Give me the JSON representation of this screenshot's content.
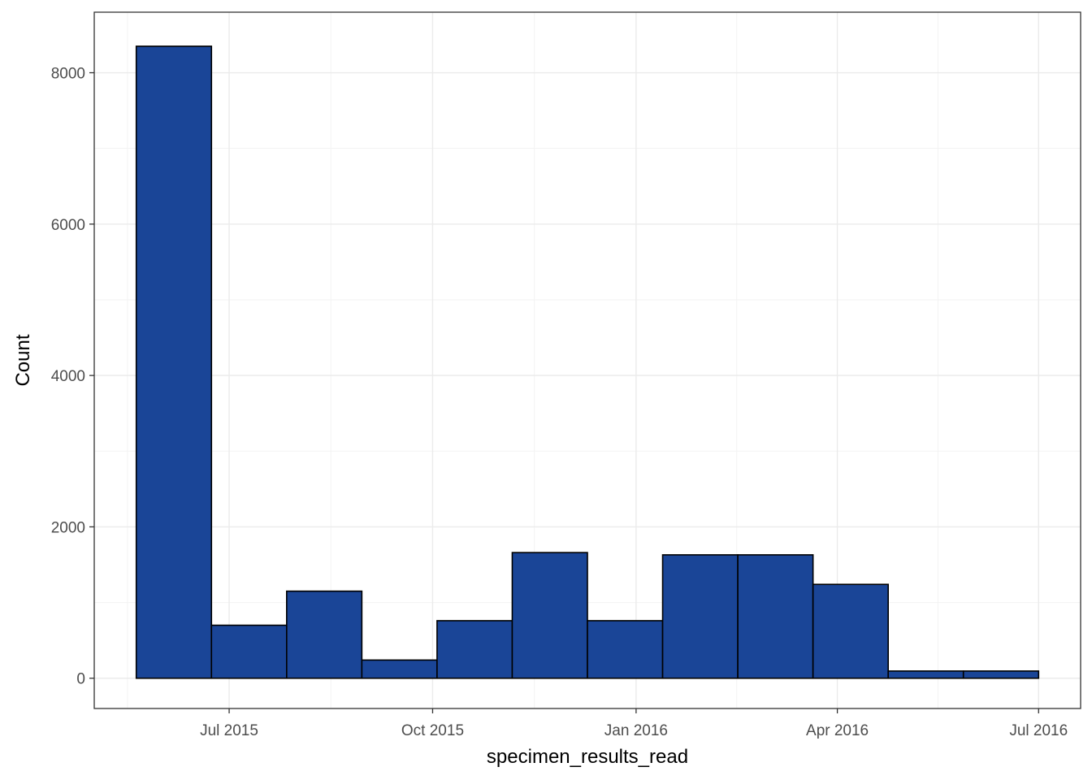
{
  "chart_data": {
    "type": "bar",
    "xlabel": "specimen_results_read",
    "ylabel": "Count",
    "x_axis": {
      "ticks": [
        {
          "date": "2015-07-01",
          "label": "Jul 2015"
        },
        {
          "date": "2015-10-01",
          "label": "Oct 2015"
        },
        {
          "date": "2016-01-01",
          "label": "Jan 2016"
        },
        {
          "date": "2016-04-01",
          "label": "Apr 2016"
        },
        {
          "date": "2016-07-01",
          "label": "Jul 2016"
        }
      ],
      "range": [
        "2015-05-01",
        "2016-07-20"
      ]
    },
    "y_axis": {
      "ticks": [
        0,
        2000,
        4000,
        6000,
        8000
      ],
      "range": [
        -400,
        8800
      ]
    },
    "bins": [
      {
        "start": "2015-05-20",
        "end": "2015-06-23",
        "value": 8350
      },
      {
        "start": "2015-06-23",
        "end": "2015-07-27",
        "value": 700
      },
      {
        "start": "2015-07-27",
        "end": "2015-08-30",
        "value": 1150
      },
      {
        "start": "2015-08-30",
        "end": "2015-10-03",
        "value": 240
      },
      {
        "start": "2015-10-03",
        "end": "2015-11-06",
        "value": 760
      },
      {
        "start": "2015-11-06",
        "end": "2015-12-10",
        "value": 1660
      },
      {
        "start": "2015-12-10",
        "end": "2016-01-13",
        "value": 760
      },
      {
        "start": "2016-01-13",
        "end": "2016-02-16",
        "value": 1630
      },
      {
        "start": "2016-02-16",
        "end": "2016-03-21",
        "value": 1630
      },
      {
        "start": "2016-03-21",
        "end": "2016-04-24",
        "value": 1240
      },
      {
        "start": "2016-04-24",
        "end": "2016-05-28",
        "value": 95
      },
      {
        "start": "2016-05-28",
        "end": "2016-07-01",
        "value": 95
      }
    ],
    "grid": true,
    "legend": "none",
    "colors": {
      "bar_fill": "#1a4597",
      "bar_stroke": "#000000",
      "grid_major": "#ebebeb",
      "grid_minor": "#f3f3f3",
      "panel_border": "#333333",
      "tick_text": "#4d4d4d"
    }
  }
}
